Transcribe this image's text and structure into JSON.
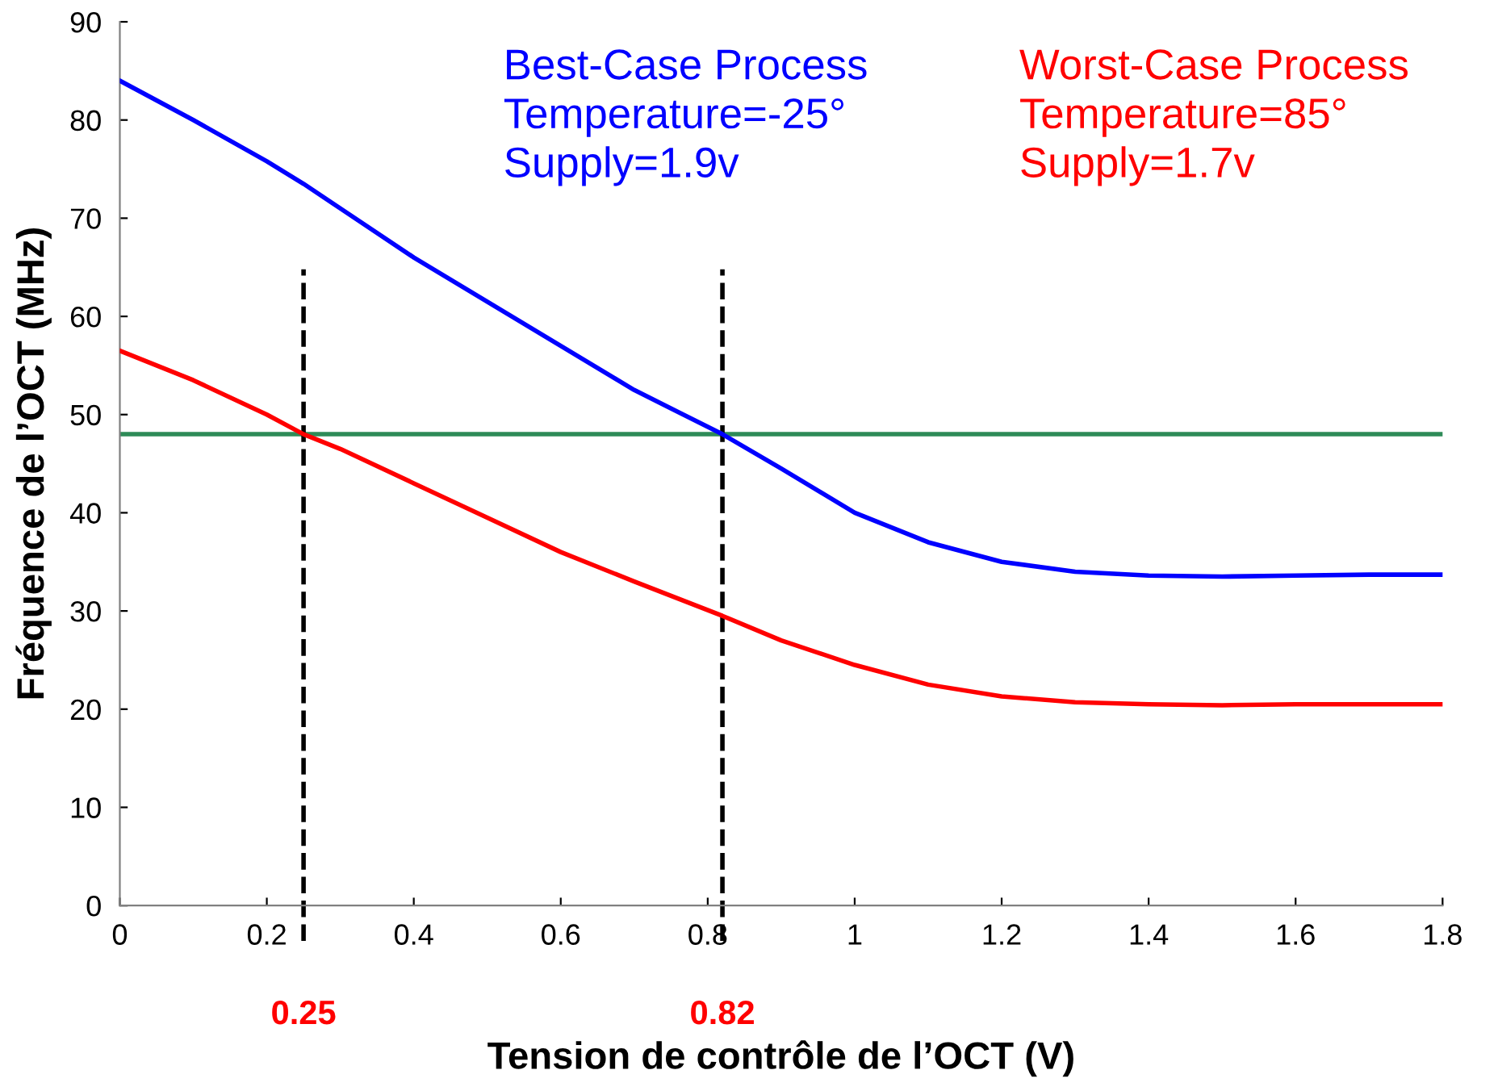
{
  "chart_data": {
    "type": "line",
    "xlabel": "Tension de contrôle de l’OCT (V)",
    "ylabel": "Fréquence de l’OCT (MHz)",
    "xlim": [
      0,
      1.8
    ],
    "ylim": [
      0,
      90
    ],
    "xticks": [
      0,
      0.2,
      0.4,
      0.6,
      0.8,
      1,
      1.2,
      1.4,
      1.6,
      1.8
    ],
    "yticks": [
      0,
      10,
      20,
      30,
      40,
      50,
      60,
      70,
      80,
      90
    ],
    "grid": false,
    "legend": false,
    "marker": "none",
    "line_style": "solid",
    "series": [
      {
        "name": "Best-Case Process\nTemperature=-25°\nSupply=1.9v",
        "color": "#0000ff",
        "x": [
          0,
          0.1,
          0.2,
          0.25,
          0.3,
          0.4,
          0.5,
          0.6,
          0.7,
          0.82,
          0.9,
          1.0,
          1.1,
          1.2,
          1.3,
          1.4,
          1.5,
          1.6,
          1.7,
          1.8
        ],
        "values": [
          84,
          80,
          75.8,
          73.5,
          71,
          66,
          61.5,
          57,
          52.5,
          48,
          44.5,
          40,
          37,
          35,
          34,
          33.6,
          33.5,
          33.6,
          33.7,
          33.7
        ]
      },
      {
        "name": "Worst-Case Process\nTemperature=85°\nSupply=1.7v",
        "color": "#ff0000",
        "x": [
          0,
          0.1,
          0.2,
          0.25,
          0.3,
          0.4,
          0.5,
          0.6,
          0.7,
          0.82,
          0.9,
          1.0,
          1.1,
          1.2,
          1.3,
          1.4,
          1.5,
          1.6,
          1.7,
          1.8
        ],
        "values": [
          56.5,
          53.5,
          50,
          48,
          46.5,
          43,
          39.5,
          36,
          33,
          29.5,
          27,
          24.5,
          22.5,
          21.3,
          20.7,
          20.5,
          20.4,
          20.5,
          20.5,
          20.5
        ]
      }
    ],
    "ref_lines": [
      {
        "axis": "y",
        "value": 48,
        "color": "#2e8b57",
        "line_style": "solid"
      },
      {
        "axis": "x",
        "value": 0.25,
        "label": "0.25",
        "color": "#000000",
        "line_style": "dashed"
      },
      {
        "axis": "x",
        "value": 0.82,
        "label": "0.82",
        "color": "#000000",
        "line_style": "dashed"
      }
    ]
  }
}
